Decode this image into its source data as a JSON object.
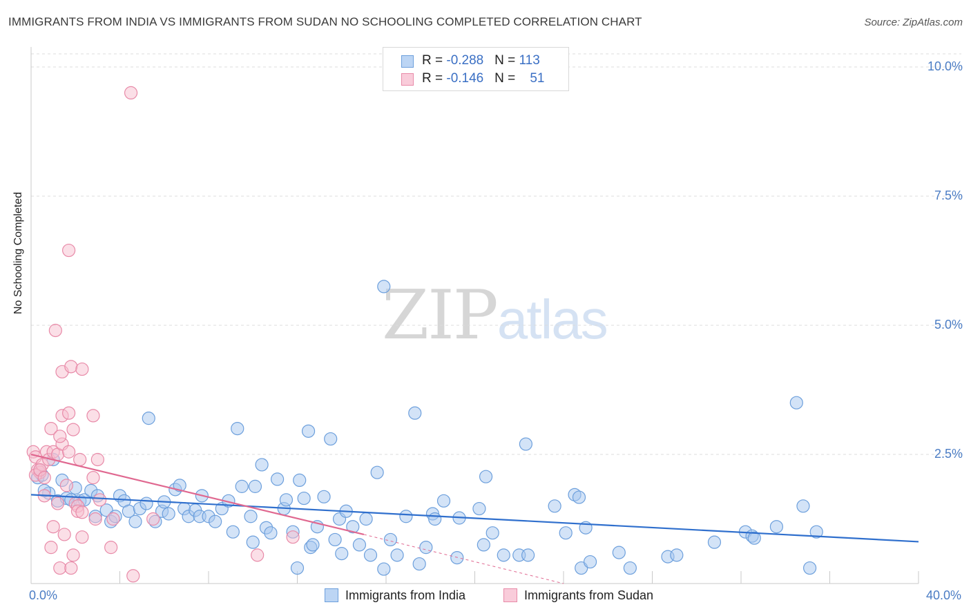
{
  "title": "IMMIGRANTS FROM INDIA VS IMMIGRANTS FROM SUDAN NO SCHOOLING COMPLETED CORRELATION CHART",
  "source": "Source: ZipAtlas.com",
  "watermark": {
    "zip": "ZIP",
    "atlas": "atlas"
  },
  "legend": {
    "india": {
      "r_label": "R = ",
      "r_value": "-0.288",
      "n_label": "N = ",
      "n_value": "113"
    },
    "sudan": {
      "r_label": "R = ",
      "r_value": "-0.146",
      "n_label": "N = ",
      "n_value": "51"
    }
  },
  "bottom_legend": {
    "india": "Immigrants from India",
    "sudan": "Immigrants from Sudan"
  },
  "colors": {
    "india_fill": "#a8c8f0",
    "india_stroke": "#6c9fdc",
    "india_line": "#2f6fcd",
    "sudan_fill": "#f7bfd0",
    "sudan_stroke": "#e88aa8",
    "sudan_line": "#e06890",
    "grid": "#dcdcdc",
    "tick_text": "#4a7cc4"
  },
  "chart_data": {
    "type": "scatter",
    "ylabel": "No Schooling Completed",
    "xlim": [
      0,
      40
    ],
    "ylim": [
      0,
      10
    ],
    "x_tick_labels": [
      {
        "value": 0,
        "label": "0.0%"
      },
      {
        "value": 40,
        "label": "40.0%"
      }
    ],
    "y_tick_labels": [
      {
        "value": 2.5,
        "label": "2.5%"
      },
      {
        "value": 5.0,
        "label": "5.0%"
      },
      {
        "value": 7.5,
        "label": "7.5%"
      },
      {
        "value": 10.0,
        "label": "10.0%"
      }
    ],
    "grid": "horizontal dashed",
    "legend_position": "top-center",
    "series": [
      {
        "name": "Immigrants from India",
        "color": "#6c9fdc",
        "trend": {
          "x0": 0,
          "y0": 1.72,
          "x1": 40,
          "y1": 0.81
        },
        "points": [
          [
            0.3,
            2.05
          ],
          [
            0.5,
            2.1
          ],
          [
            0.4,
            2.2
          ],
          [
            0.8,
            1.75
          ],
          [
            1.0,
            2.4
          ],
          [
            1.2,
            1.6
          ],
          [
            1.4,
            2.0
          ],
          [
            1.6,
            1.65
          ],
          [
            1.8,
            1.62
          ],
          [
            2.0,
            1.85
          ],
          [
            2.2,
            1.6
          ],
          [
            2.4,
            1.62
          ],
          [
            2.7,
            1.8
          ],
          [
            3.0,
            1.7
          ],
          [
            3.4,
            1.42
          ],
          [
            3.6,
            1.2
          ],
          [
            3.8,
            1.3
          ],
          [
            4.0,
            1.7
          ],
          [
            4.2,
            1.6
          ],
          [
            4.4,
            1.4
          ],
          [
            4.7,
            1.2
          ],
          [
            4.9,
            1.45
          ],
          [
            5.2,
            1.55
          ],
          [
            5.3,
            3.2
          ],
          [
            5.6,
            1.2
          ],
          [
            5.9,
            1.4
          ],
          [
            6.0,
            1.58
          ],
          [
            6.2,
            1.35
          ],
          [
            6.5,
            1.82
          ],
          [
            6.7,
            1.9
          ],
          [
            6.9,
            1.45
          ],
          [
            7.1,
            1.3
          ],
          [
            7.4,
            1.42
          ],
          [
            7.6,
            1.3
          ],
          [
            7.7,
            1.7
          ],
          [
            8.0,
            1.3
          ],
          [
            8.3,
            1.2
          ],
          [
            8.6,
            1.45
          ],
          [
            8.9,
            1.6
          ],
          [
            9.1,
            1.0
          ],
          [
            9.3,
            3.0
          ],
          [
            9.5,
            1.88
          ],
          [
            9.9,
            1.3
          ],
          [
            10.0,
            0.8
          ],
          [
            10.1,
            1.88
          ],
          [
            10.4,
            2.3
          ],
          [
            10.6,
            1.08
          ],
          [
            10.8,
            0.98
          ],
          [
            11.1,
            2.02
          ],
          [
            11.4,
            1.45
          ],
          [
            11.5,
            1.62
          ],
          [
            11.8,
            1.0
          ],
          [
            12.1,
            2.0
          ],
          [
            12.3,
            1.65
          ],
          [
            12.6,
            0.7
          ],
          [
            12.0,
            0.3
          ],
          [
            12.5,
            2.95
          ],
          [
            12.7,
            0.75
          ],
          [
            12.9,
            1.1
          ],
          [
            13.2,
            1.68
          ],
          [
            13.5,
            2.8
          ],
          [
            13.7,
            0.85
          ],
          [
            13.9,
            1.25
          ],
          [
            14.0,
            0.58
          ],
          [
            14.2,
            1.4
          ],
          [
            14.5,
            1.1
          ],
          [
            14.8,
            0.75
          ],
          [
            15.1,
            1.25
          ],
          [
            15.3,
            0.55
          ],
          [
            15.6,
            2.15
          ],
          [
            15.9,
            5.75
          ],
          [
            15.9,
            0.28
          ],
          [
            16.2,
            0.85
          ],
          [
            16.5,
            0.55
          ],
          [
            16.9,
            1.3
          ],
          [
            17.3,
            3.3
          ],
          [
            17.5,
            0.38
          ],
          [
            17.8,
            0.7
          ],
          [
            18.1,
            1.35
          ],
          [
            18.2,
            1.25
          ],
          [
            18.6,
            1.6
          ],
          [
            19.2,
            0.5
          ],
          [
            19.3,
            1.27
          ],
          [
            20.2,
            1.45
          ],
          [
            20.4,
            0.75
          ],
          [
            20.5,
            2.07
          ],
          [
            20.8,
            0.98
          ],
          [
            21.3,
            0.55
          ],
          [
            22.0,
            0.55
          ],
          [
            22.3,
            2.7
          ],
          [
            22.4,
            0.55
          ],
          [
            23.6,
            1.5
          ],
          [
            24.1,
            0.98
          ],
          [
            24.5,
            1.72
          ],
          [
            24.7,
            1.67
          ],
          [
            25.0,
            1.08
          ],
          [
            24.8,
            0.3
          ],
          [
            25.2,
            0.42
          ],
          [
            26.5,
            0.6
          ],
          [
            27.0,
            0.3
          ],
          [
            28.7,
            0.52
          ],
          [
            29.1,
            0.55
          ],
          [
            30.8,
            0.8
          ],
          [
            32.2,
            1.0
          ],
          [
            32.5,
            0.92
          ],
          [
            32.6,
            0.88
          ],
          [
            33.6,
            1.1
          ],
          [
            34.5,
            3.5
          ],
          [
            34.8,
            1.5
          ],
          [
            35.1,
            0.3
          ],
          [
            35.4,
            1.0
          ],
          [
            0.6,
            1.8
          ],
          [
            2.9,
            1.3
          ]
        ]
      },
      {
        "name": "Immigrants from Sudan",
        "color": "#e88aa8",
        "trend": {
          "x0": 0,
          "y0": 2.5,
          "x1": 15.0,
          "y1": 0.95,
          "dashed_to": {
            "x": 24.0,
            "y": 0.0
          }
        },
        "points": [
          [
            0.1,
            2.55
          ],
          [
            0.2,
            2.45
          ],
          [
            0.3,
            2.2
          ],
          [
            0.4,
            2.15
          ],
          [
            0.5,
            2.3
          ],
          [
            0.6,
            1.7
          ],
          [
            0.7,
            2.55
          ],
          [
            0.8,
            2.4
          ],
          [
            0.9,
            3.0
          ],
          [
            0.9,
            0.7
          ],
          [
            1.0,
            2.55
          ],
          [
            1.0,
            1.1
          ],
          [
            1.1,
            4.9
          ],
          [
            1.2,
            1.55
          ],
          [
            1.2,
            2.5
          ],
          [
            1.4,
            2.7
          ],
          [
            1.3,
            2.85
          ],
          [
            1.4,
            3.25
          ],
          [
            1.3,
            0.3
          ],
          [
            1.4,
            4.1
          ],
          [
            1.5,
            0.95
          ],
          [
            1.6,
            1.9
          ],
          [
            1.7,
            3.3
          ],
          [
            1.7,
            6.45
          ],
          [
            1.7,
            2.55
          ],
          [
            1.8,
            0.3
          ],
          [
            1.8,
            4.2
          ],
          [
            1.9,
            0.55
          ],
          [
            1.9,
            2.98
          ],
          [
            2.0,
            1.55
          ],
          [
            2.1,
            1.5
          ],
          [
            2.1,
            1.4
          ],
          [
            2.2,
            2.4
          ],
          [
            2.3,
            1.38
          ],
          [
            2.3,
            4.15
          ],
          [
            2.3,
            0.9
          ],
          [
            2.8,
            3.25
          ],
          [
            2.8,
            2.05
          ],
          [
            2.9,
            1.25
          ],
          [
            3.0,
            2.4
          ],
          [
            3.1,
            1.62
          ],
          [
            3.6,
            0.7
          ],
          [
            3.7,
            1.25
          ],
          [
            4.5,
            9.5
          ],
          [
            4.6,
            0.15
          ],
          [
            5.5,
            1.25
          ],
          [
            10.2,
            0.55
          ],
          [
            11.8,
            0.9
          ],
          [
            0.2,
            2.1
          ],
          [
            0.4,
            2.2
          ],
          [
            0.6,
            2.05
          ]
        ]
      }
    ]
  }
}
